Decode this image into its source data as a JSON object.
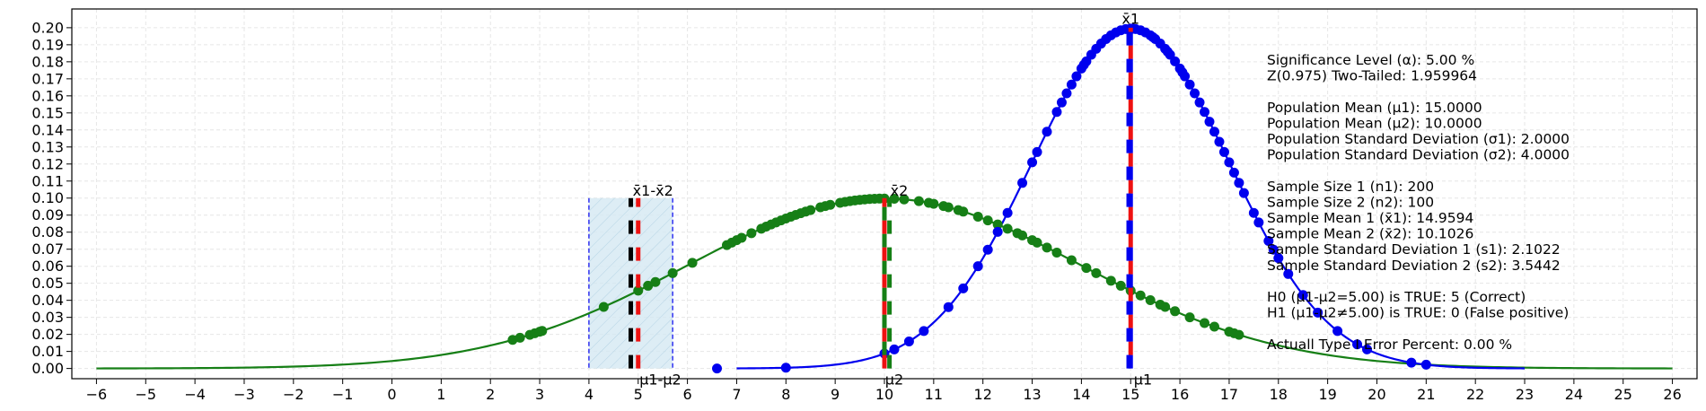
{
  "chart_data": {
    "type": "line",
    "xlim": [
      -6.5,
      26.5
    ],
    "ylim": [
      -0.006,
      0.211
    ],
    "x_ticks": [
      -6,
      -5,
      -4,
      -3,
      -2,
      -1,
      0,
      1,
      2,
      3,
      4,
      5,
      6,
      7,
      8,
      9,
      10,
      11,
      12,
      13,
      14,
      15,
      16,
      17,
      18,
      19,
      20,
      21,
      22,
      23,
      24,
      25,
      26
    ],
    "y_ticks": [
      0.0,
      0.01,
      0.02,
      0.03,
      0.04,
      0.05,
      0.06,
      0.07,
      0.08,
      0.09,
      0.1,
      0.11,
      0.12,
      0.13,
      0.14,
      0.15,
      0.16,
      0.17,
      0.18,
      0.19,
      0.2
    ],
    "grid": true,
    "curves": [
      {
        "mean": 10.0,
        "sd": 4.0,
        "x_range": [
          -6,
          26
        ],
        "color": "#167f16"
      },
      {
        "mean": 15.0,
        "sd": 2.0,
        "x_range": [
          7,
          23
        ],
        "color": "#0000ee"
      }
    ],
    "green_points_x": [
      2.45,
      2.6,
      2.8,
      2.9,
      3.0,
      3.05,
      4.3,
      5.0,
      5.2,
      5.35,
      5.7,
      6.1,
      6.8,
      6.9,
      7.0,
      7.1,
      7.3,
      7.5,
      7.6,
      7.7,
      7.8,
      7.9,
      8.0,
      8.1,
      8.2,
      8.3,
      8.4,
      8.5,
      8.7,
      8.8,
      8.9,
      9.1,
      9.2,
      9.3,
      9.4,
      9.5,
      9.6,
      9.7,
      9.8,
      9.9,
      10.0,
      10.2,
      10.4,
      10.7,
      10.9,
      11.0,
      11.2,
      11.3,
      11.5,
      11.6,
      11.9,
      12.1,
      12.3,
      12.5,
      12.7,
      12.8,
      13.0,
      13.1,
      13.3,
      13.5,
      13.8,
      14.1,
      14.3,
      14.6,
      14.8,
      15.0,
      15.2,
      15.4,
      15.6,
      15.7,
      15.9,
      16.2,
      16.5,
      16.7,
      17.0,
      17.1,
      17.2
    ],
    "blue_points_x": [
      6.6,
      8.0,
      10.0,
      10.2,
      10.5,
      10.8,
      11.3,
      11.6,
      11.9,
      12.1,
      12.3,
      12.5,
      12.8,
      13.0,
      13.1,
      13.3,
      13.5,
      13.6,
      13.7,
      13.8,
      13.9,
      14.0,
      14.05,
      14.1,
      14.2,
      14.3,
      14.4,
      14.5,
      14.6,
      14.7,
      14.8,
      14.9,
      15.0,
      15.05,
      15.1,
      15.2,
      15.3,
      15.4,
      15.45,
      15.5,
      15.6,
      15.7,
      15.75,
      15.8,
      15.9,
      16.0,
      16.05,
      16.1,
      16.2,
      16.3,
      16.4,
      16.5,
      16.6,
      16.7,
      16.8,
      16.9,
      17.0,
      17.1,
      17.2,
      17.3,
      17.5,
      17.6,
      17.8,
      17.9,
      18.0,
      18.2,
      18.5,
      18.8,
      19.2,
      19.6,
      19.8,
      20.7,
      21.0
    ],
    "shaded_region": {
      "x": [
        4.0,
        5.7
      ],
      "y_top": 0.1
    },
    "vlines": [
      {
        "x": 4.85,
        "y_top": 0.1,
        "colors": [
          "#000000",
          "#ffffff"
        ]
      },
      {
        "x": 5.0,
        "y_top": 0.1,
        "colors": [
          "#ee1111",
          "#ffffff"
        ]
      },
      {
        "x": 10.0,
        "y_top": 0.1,
        "colors": [
          "#ee1111",
          "#167f16"
        ]
      },
      {
        "x": 10.1026,
        "y_top": 0.1,
        "colors": [
          "#167f16",
          "#ffffff"
        ]
      },
      {
        "x": 15.0,
        "y_top": 0.2,
        "colors": [
          "#0000ee",
          "#ee1111"
        ]
      },
      {
        "x": 14.9594,
        "y_top": 0.2,
        "colors": [
          "#0000ee",
          "#ffffff"
        ]
      }
    ],
    "annotations": [
      {
        "text": "x̄1",
        "x": 15.0,
        "y": 0.2022,
        "anchor": "middle"
      },
      {
        "text": "x̄2",
        "x": 10.3,
        "y": 0.1015,
        "anchor": "middle"
      },
      {
        "text": "x̄1-x̄2",
        "x": 5.3,
        "y": 0.1015,
        "anchor": "middle"
      },
      {
        "text": "μ1-μ2",
        "x": 5.45,
        "y": -0.0095,
        "anchor": "middle"
      },
      {
        "text": "μ2",
        "x": 10.2,
        "y": -0.0095,
        "anchor": "middle"
      },
      {
        "text": "μ1",
        "x": 15.25,
        "y": -0.0095,
        "anchor": "middle"
      }
    ],
    "info_lines": [
      "Significance Level (α): 5.00 %",
      "Z(0.975) Two-Tailed: 1.959964",
      "",
      "Population Mean (μ1): 15.0000",
      "Population Mean (μ2): 10.0000",
      "Population Standard Deviation (σ1): 2.0000",
      "Population Standard Deviation (σ2): 4.0000",
      "",
      "Sample Size 1 (n1): 200",
      "Sample Size 2 (n2): 100",
      "Sample Mean 1 (x̄1): 14.9594",
      "Sample Mean 2 (x̄2): 10.1026",
      "Sample Standard Deviation 1 (s1): 2.1022",
      "Sample Standard Deviation 2 (s2): 3.5442",
      "",
      "H0 (μ1-μ2=5.00) is TRUE: 5 (Correct)",
      "H1 (μ1-μ2≠5.00) is TRUE: 0 (False positive)",
      "",
      "Actuall Type I Error Percent: 0.00 %"
    ]
  }
}
